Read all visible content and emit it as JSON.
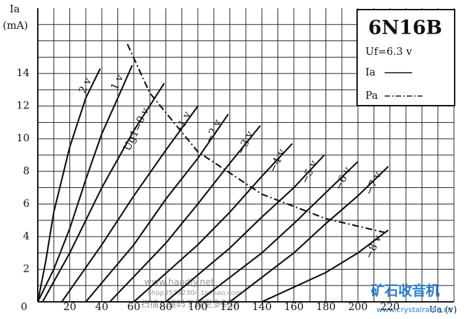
{
  "chart_data": {
    "type": "line",
    "title": "6N16B",
    "subtitle": "Uf=6.3 v",
    "y_label": "Ia",
    "y_unit": "(mA)",
    "x_label": "Ua (v)",
    "legend": [
      "Ia",
      "Pa"
    ],
    "xlim": [
      0,
      260
    ],
    "ylim": [
      0,
      18
    ],
    "xticks": [
      0,
      20,
      40,
      60,
      80,
      100,
      120,
      140,
      160,
      180,
      200,
      220
    ],
    "yticks": [
      0,
      2,
      4,
      6,
      8,
      10,
      12,
      14
    ],
    "grid": true,
    "series": [
      {
        "name": "2 v",
        "color": "#111",
        "x": [
          0,
          5,
          10,
          20,
          30,
          39
        ],
        "values": [
          0,
          2.5,
          5.5,
          9.5,
          12.5,
          14.3
        ]
      },
      {
        "name": "1 v",
        "color": "#111",
        "x": [
          0,
          10,
          20,
          30,
          40,
          50,
          59
        ],
        "values": [
          0,
          2,
          4.5,
          7.5,
          10.3,
          12.5,
          14.5
        ]
      },
      {
        "name": "Ug1=0 v",
        "color": "#111",
        "x": [
          3,
          20,
          40,
          60,
          79
        ],
        "values": [
          0,
          3,
          7,
          10.5,
          13.4
        ]
      },
      {
        "name": "−1 v",
        "color": "#111",
        "x": [
          15,
          40,
          60,
          80,
          100
        ],
        "values": [
          0,
          3.5,
          6.5,
          9.3,
          12
        ]
      },
      {
        "name": "−2 v",
        "color": "#111",
        "x": [
          30,
          60,
          80,
          100,
          119
        ],
        "values": [
          0,
          3.5,
          6.3,
          8.8,
          11.5
        ]
      },
      {
        "name": "−3 v",
        "color": "#111",
        "x": [
          45,
          80,
          100,
          120,
          139
        ],
        "values": [
          0,
          3.6,
          6,
          8.5,
          10.8
        ]
      },
      {
        "name": "−4 v",
        "color": "#111",
        "x": [
          60,
          100,
          120,
          140,
          159
        ],
        "values": [
          0,
          3.5,
          5.5,
          7.7,
          9.7
        ]
      },
      {
        "name": "−5 v",
        "color": "#111",
        "x": [
          80,
          120,
          140,
          160,
          179
        ],
        "values": [
          0,
          3.3,
          5.2,
          7,
          9
        ]
      },
      {
        "name": "−6 v",
        "color": "#111",
        "x": [
          100,
          140,
          160,
          180,
          200
        ],
        "values": [
          0,
          3,
          4.8,
          6.7,
          8.6
        ]
      },
      {
        "name": "−7 v",
        "color": "#111",
        "x": [
          120,
          160,
          180,
          200,
          219
        ],
        "values": [
          0,
          3,
          4.8,
          6.5,
          8.3
        ]
      },
      {
        "name": "−8 v",
        "color": "#111",
        "x": [
          140,
          180,
          200,
          219
        ],
        "values": [
          0,
          1.8,
          3,
          4.4
        ]
      }
    ],
    "power_curve": {
      "name": "Pa",
      "color": "#111",
      "x": [
        56,
        70,
        100,
        140,
        180,
        219
      ],
      "values": [
        15.8,
        12.8,
        9.2,
        6.6,
        5.1,
        4.2
      ]
    },
    "watermarks": [
      "www.haodiy.net",
      "shop35392304.taobao.com",
      "扫描二维码了解更多制作",
      "矿石收音机",
      "www.crystalradio.cn"
    ]
  }
}
